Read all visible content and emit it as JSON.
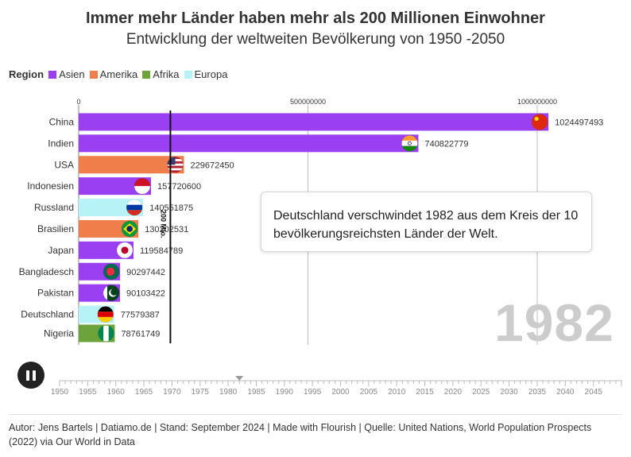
{
  "title": "Immer mehr Länder haben mehr als 200 Millionen Einwohner",
  "subtitle": "Entwicklung der weltweiten Bevölkerung von 1950 -2050",
  "legend": {
    "title": "Region",
    "items": [
      {
        "label": "Asien",
        "color": "#9b3ff2"
      },
      {
        "label": "Amerika",
        "color": "#f07e4a"
      },
      {
        "label": "Afrika",
        "color": "#6ca33a"
      },
      {
        "label": "Europa",
        "color": "#b7f2f6"
      }
    ]
  },
  "annotation": "Deutschland verschwindet 1982 aus dem Kreis der 10 bevölkerungsreichsten Länder der Welt.",
  "year_label": "1982",
  "reference_line": {
    "label": "200 Mio.",
    "value": 200000000
  },
  "chart_data": {
    "type": "bar",
    "orientation": "horizontal",
    "xlim": [
      0,
      1100000000
    ],
    "x_ticks": [
      0,
      500000000,
      1000000000
    ],
    "x_tick_labels": [
      "0",
      "500000000",
      "1000000000"
    ],
    "categories": [
      "China",
      "Indien",
      "USA",
      "Indonesien",
      "Russland",
      "Brasilien",
      "Japan",
      "Bangladesch",
      "Pakistan",
      "Deutschland",
      "Nigeria"
    ],
    "values": [
      1024497493,
      740822779,
      229672450,
      157720600,
      140551875,
      130202531,
      119584789,
      90297442,
      90103422,
      77579387,
      78761749
    ],
    "value_labels": [
      "1024497493",
      "740822779",
      "229672450",
      "157720600",
      "140551875",
      "130202531",
      "119584789",
      "90297442",
      "90103422",
      "77579387",
      "78761749"
    ],
    "regions": [
      "Asien",
      "Asien",
      "Amerika",
      "Asien",
      "Europa",
      "Amerika",
      "Asien",
      "Asien",
      "Asien",
      "Europa",
      "Afrika"
    ],
    "flags": [
      "flag-china",
      "flag-india",
      "flag-usa",
      "flag-indonesia",
      "flag-russia",
      "flag-brazil",
      "flag-japan",
      "flag-bangladesh",
      "flag-pakistan",
      "flag-germany",
      "flag-nigeria"
    ]
  },
  "timeline": {
    "start": 1950,
    "end": 2050,
    "current": 1982,
    "labels": [
      "1950",
      "1955",
      "1960",
      "1965",
      "1970",
      "1975",
      "1980",
      "1985",
      "1990",
      "1995",
      "2000",
      "2005",
      "2010",
      "2015",
      "2020",
      "2025",
      "2030",
      "2035",
      "2040",
      "2045"
    ]
  },
  "play_icon": "pause-icon",
  "footer": "Autor: Jens Bartels | Datiamo.de | Stand: September 2024 | Made with Flourish | Quelle: United Nations, World Population Prospects (2022) via Our World in Data"
}
